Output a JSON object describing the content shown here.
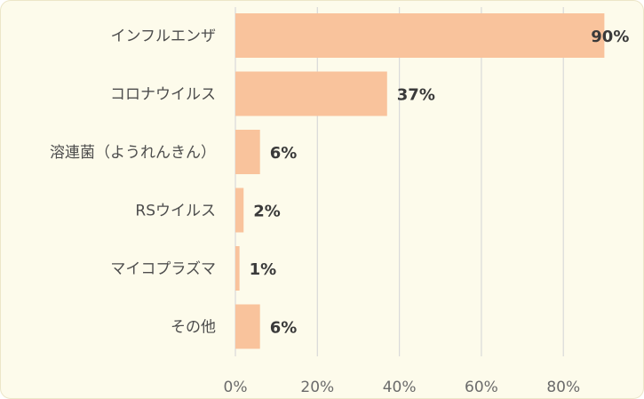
{
  "chart_data": {
    "type": "bar",
    "orientation": "horizontal",
    "categories": [
      "インフルエンザ",
      "コロナウイルス",
      "溶連菌（ようれんきん）",
      "RSウイルス",
      "マイコプラズマ",
      "その他"
    ],
    "values": [
      90,
      37,
      6,
      2,
      1,
      6
    ],
    "value_labels": [
      "90%",
      "37%",
      "6%",
      "2%",
      "1%",
      "6%"
    ],
    "x_ticks": [
      0,
      20,
      40,
      60,
      80
    ],
    "x_tick_labels": [
      "0%",
      "20%",
      "40%",
      "60%",
      "80%"
    ],
    "xlim": [
      0,
      97.5
    ],
    "grid": "vertical",
    "bar_color": "#f9c39c",
    "grid_color": "#d9d9d9"
  }
}
